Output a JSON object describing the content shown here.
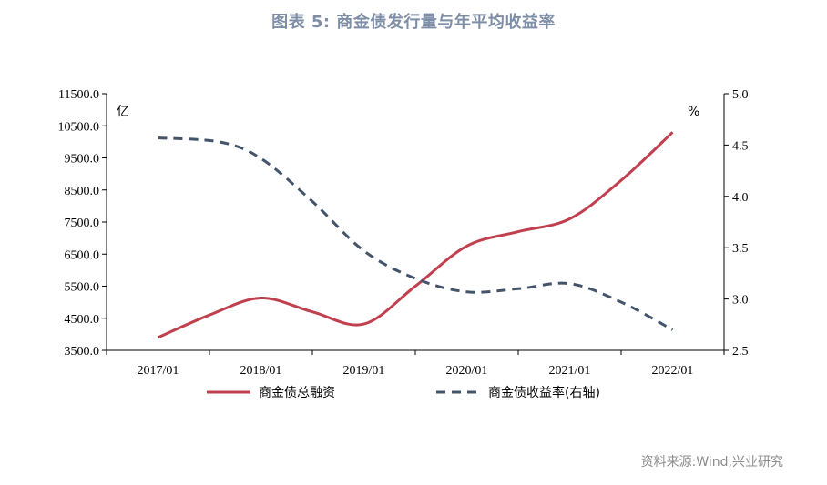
{
  "title": "图表 5:   商金债发行量与年平均收益率",
  "source": "资料来源:Wind,兴业研究",
  "chart_data": {
    "type": "line",
    "x": [
      "2017/01",
      "2018/01",
      "2019/01",
      "2020/01",
      "2021/01",
      "2022/01"
    ],
    "left_axis": {
      "unit": "亿",
      "ylim": [
        3500.0,
        11500.0
      ],
      "ticks": [
        "3500.0",
        "4500.0",
        "5500.0",
        "6500.0",
        "7500.0",
        "8500.0",
        "9500.0",
        "10500.0",
        "11500.0"
      ]
    },
    "right_axis": {
      "unit": "%",
      "ylim": [
        2.5,
        5.0
      ],
      "ticks": [
        "2.5",
        "3.0",
        "3.5",
        "4.0",
        "4.5",
        "5.0"
      ]
    },
    "series": [
      {
        "name": "商金债总融资",
        "axis": "left",
        "style": "solid",
        "color": "#c0404f",
        "x": [
          0,
          0.5,
          1,
          1.5,
          2,
          2.5,
          3,
          3.5,
          4,
          4.5,
          5
        ],
        "values": [
          3900,
          4600,
          5130,
          4700,
          4320,
          5500,
          6750,
          7200,
          7600,
          8800,
          10300
        ]
      },
      {
        "name": "商金债收益率(右轴)",
        "axis": "right",
        "style": "dashed",
        "color": "#44546a",
        "x": [
          0,
          0.6,
          1,
          1.5,
          2,
          2.5,
          3,
          3.5,
          4,
          4.5,
          5
        ],
        "values": [
          4.57,
          4.53,
          4.37,
          3.95,
          3.47,
          3.2,
          3.07,
          3.1,
          3.15,
          2.97,
          2.7
        ]
      }
    ],
    "grid": false,
    "legend": "bottom"
  }
}
